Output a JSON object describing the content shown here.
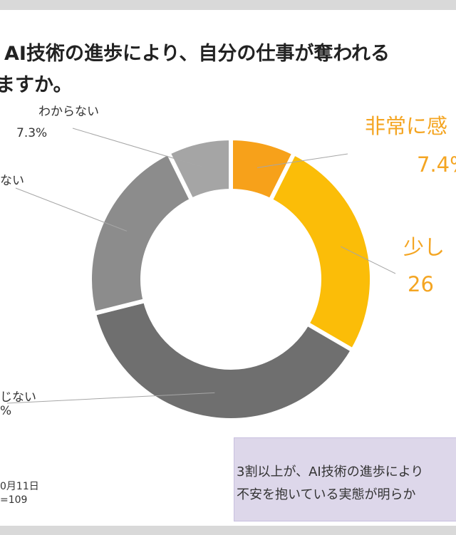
{
  "title": {
    "line1": "AI技術の進歩により、自分の仕事が奪われる",
    "line2": "ますか。"
  },
  "chart_data": {
    "type": "pie",
    "donut": true,
    "slices": [
      {
        "label": "非常に感",
        "value": 7.4,
        "value_label": "7.4%",
        "color": "#f7a11a"
      },
      {
        "label": "少し",
        "value": 26,
        "value_label": "26",
        "color": "#fbbd08"
      },
      {
        "label": "じない",
        "value": 37.7,
        "value_label": "%",
        "color": "#6f6f6f"
      },
      {
        "label": "ない",
        "value": 21.6,
        "value_label": "",
        "color": "#8c8c8c"
      },
      {
        "label": "わからない",
        "value": 7.3,
        "value_label": "7.3%",
        "color": "#a5a5a5"
      }
    ]
  },
  "note": {
    "line1": "3割以上が、AI技術の進歩により",
    "line2": "不安を抱いている実態が明らか"
  },
  "source": {
    "line1": "0月11日",
    "line2": "=109"
  }
}
